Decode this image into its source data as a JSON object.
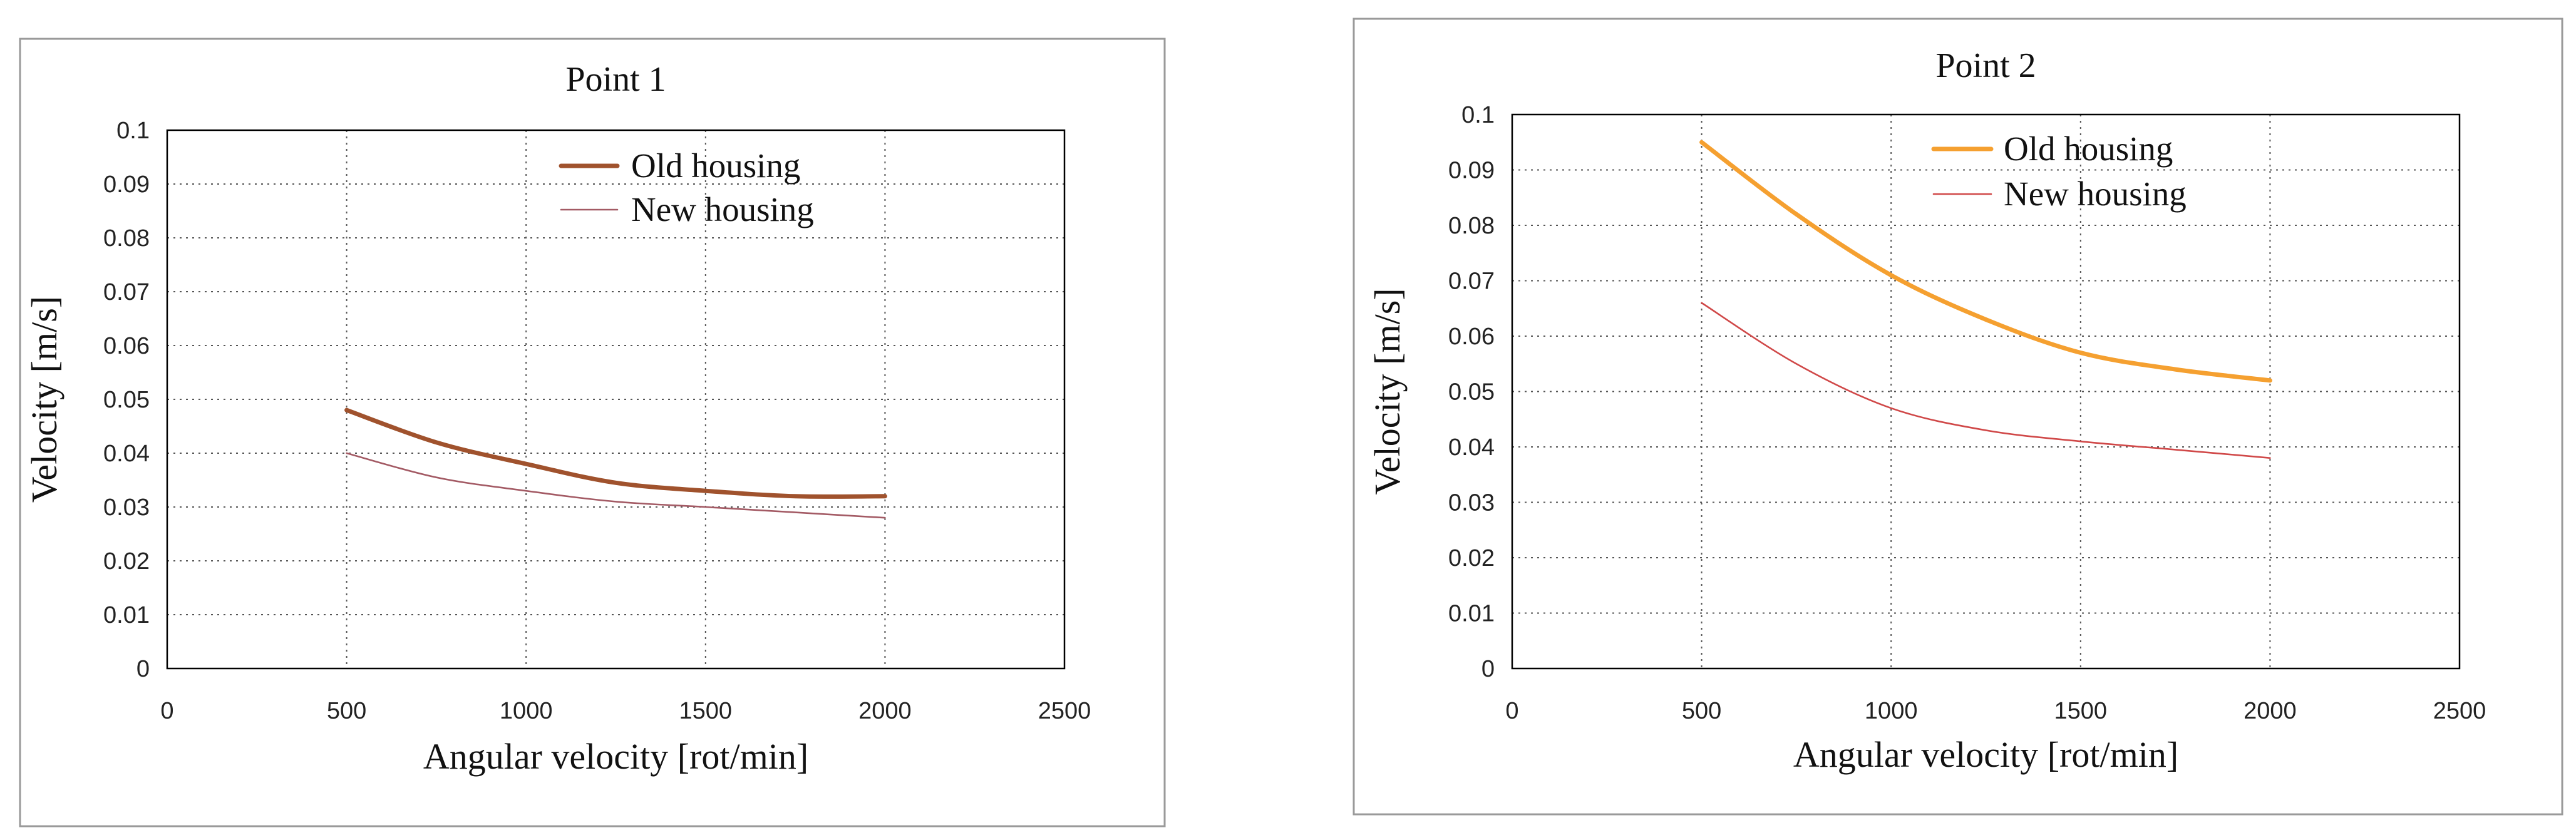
{
  "chart_data": [
    {
      "type": "line",
      "title": "Point 1",
      "xlabel": "Angular velocity [rot/min]",
      "ylabel": "Velocity [m/s]",
      "xlim": [
        0,
        2500
      ],
      "ylim": [
        0,
        0.1
      ],
      "x_ticks": [
        0,
        500,
        1000,
        1500,
        2000,
        2500
      ],
      "y_ticks": [
        0,
        0.01,
        0.02,
        0.03,
        0.04,
        0.05,
        0.06,
        0.07,
        0.08,
        0.09,
        0.1
      ],
      "grid": true,
      "legend_position": "top-right",
      "series": [
        {
          "name": "Old housing",
          "color": "#a0522d",
          "width": "thick",
          "x": [
            500,
            750,
            1000,
            1250,
            1500,
            1750,
            2000
          ],
          "y": [
            0.048,
            0.042,
            0.038,
            0.0345,
            0.033,
            0.032,
            0.032
          ]
        },
        {
          "name": "New housing",
          "color": "#a35a64",
          "width": "thin",
          "x": [
            500,
            750,
            1000,
            1250,
            1500,
            1750,
            2000
          ],
          "y": [
            0.04,
            0.0355,
            0.033,
            0.031,
            0.03,
            0.029,
            0.028
          ]
        }
      ]
    },
    {
      "type": "line",
      "title": "Point 2",
      "xlabel": "Angular velocity [rot/min]",
      "ylabel": "Velocity [m/s]",
      "xlim": [
        0,
        2500
      ],
      "ylim": [
        0,
        0.1
      ],
      "x_ticks": [
        0,
        500,
        1000,
        1500,
        2000,
        2500
      ],
      "y_ticks": [
        0,
        0.01,
        0.02,
        0.03,
        0.04,
        0.05,
        0.06,
        0.07,
        0.08,
        0.09,
        0.1
      ],
      "grid": true,
      "legend_position": "top-right",
      "series": [
        {
          "name": "Old housing",
          "color": "#f5a030",
          "width": "thick",
          "x": [
            500,
            750,
            1000,
            1250,
            1500,
            1750,
            2000
          ],
          "y": [
            0.095,
            0.082,
            0.071,
            0.063,
            0.057,
            0.054,
            0.052
          ]
        },
        {
          "name": "New housing",
          "color": "#d04848",
          "width": "thin",
          "x": [
            500,
            750,
            1000,
            1250,
            1500,
            1750,
            2000
          ],
          "y": [
            0.066,
            0.055,
            0.047,
            0.043,
            0.041,
            0.0395,
            0.038
          ]
        }
      ]
    }
  ]
}
